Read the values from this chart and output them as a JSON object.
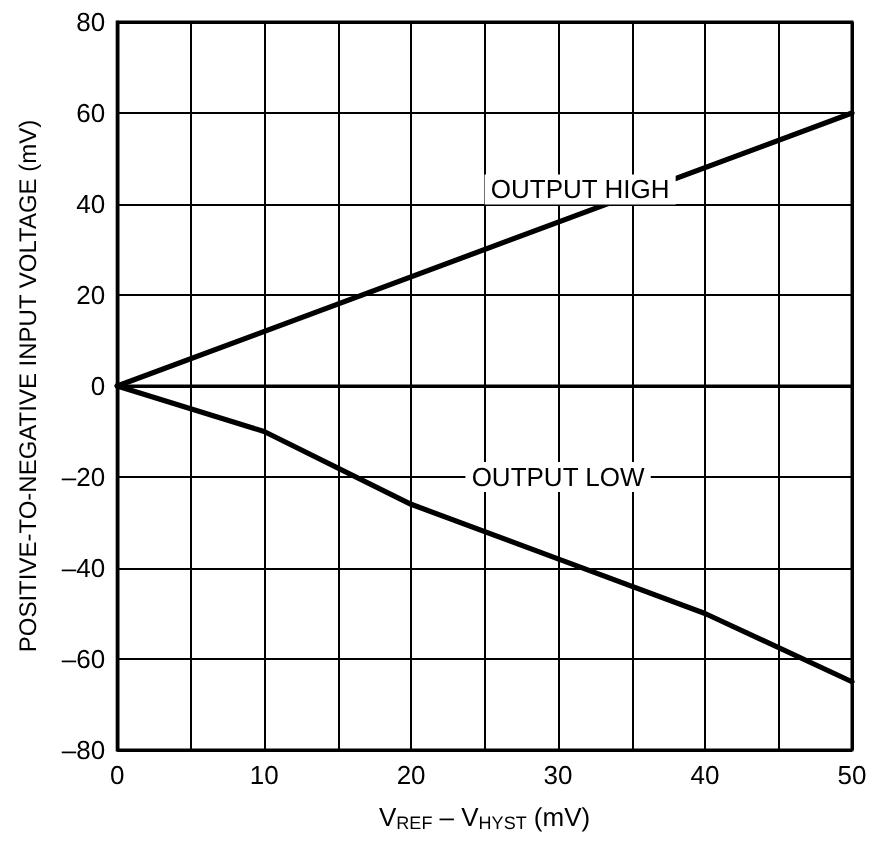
{
  "chart_data": {
    "type": "line",
    "xlabel": "V$_{REF}$ – V$_{HYST}$ (mV)",
    "ylabel": "POSITIVE-TO-NEGATIVE INPUT VOLTAGE (mV)",
    "xlim": [
      0,
      50
    ],
    "xticks": [
      0,
      {
        "value": 5,
        "label": null
      },
      10,
      {
        "value": 15,
        "label": null
      },
      20,
      {
        "value": 25,
        "label": null
      },
      30,
      {
        "value": 35,
        "label": null
      },
      40,
      {
        "value": 45,
        "label": null
      },
      50
    ],
    "ylim": [
      -80,
      80
    ],
    "yticks": [
      {
        "value": -80,
        "label": "–80"
      },
      {
        "value": -60,
        "label": "–60"
      },
      {
        "value": -40,
        "label": "–40"
      },
      {
        "value": -20,
        "label": "–20"
      },
      0,
      20,
      40,
      60,
      80
    ],
    "grid": true,
    "marker": "none",
    "line_style": "solid",
    "series": [
      {
        "color": "#000000",
        "x": [
          0,
          50
        ],
        "values": [
          0,
          60
        ]
      },
      {
        "color": "#000000",
        "x": [
          0,
          5,
          10,
          20,
          30,
          40,
          50
        ],
        "values": [
          0,
          -5,
          -10,
          -26,
          -38,
          -50,
          -65
        ]
      }
    ],
    "annotations": [
      "OUTPUT HIGH",
      "OUTPUT LOW"
    ]
  }
}
